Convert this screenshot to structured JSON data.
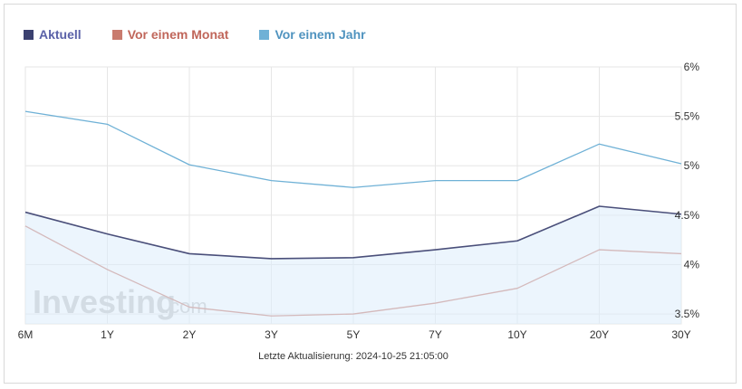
{
  "chart_data": {
    "type": "line",
    "categories": [
      "6M",
      "1Y",
      "2Y",
      "3Y",
      "5Y",
      "7Y",
      "10Y",
      "20Y",
      "30Y"
    ],
    "series": [
      {
        "name": "Aktuell",
        "color": "#4a4f7a",
        "values": [
          4.53,
          4.31,
          4.11,
          4.06,
          4.07,
          4.15,
          4.24,
          4.59,
          4.51
        ],
        "fill": true
      },
      {
        "name": "Vor einem Monat",
        "color": "#c97b6e",
        "values": [
          4.39,
          3.95,
          3.57,
          3.48,
          3.5,
          3.61,
          3.76,
          4.15,
          4.11
        ],
        "fill": false
      },
      {
        "name": "Vor einem Jahr",
        "color": "#6fb1d6",
        "values": [
          5.55,
          5.42,
          5.01,
          4.85,
          4.78,
          4.85,
          4.85,
          5.22,
          5.02
        ],
        "fill": false
      }
    ],
    "y_ticks": [
      "3.5%",
      "4%",
      "4.5%",
      "5%",
      "5.5%",
      "6%"
    ],
    "y_tick_values": [
      3.5,
      4,
      4.5,
      5,
      5.5,
      6
    ],
    "ylim": [
      3.4,
      6
    ],
    "footer": "Letzte Aktualisierung: 2024-10-25 21:05:00",
    "watermark": "Investing.com"
  }
}
